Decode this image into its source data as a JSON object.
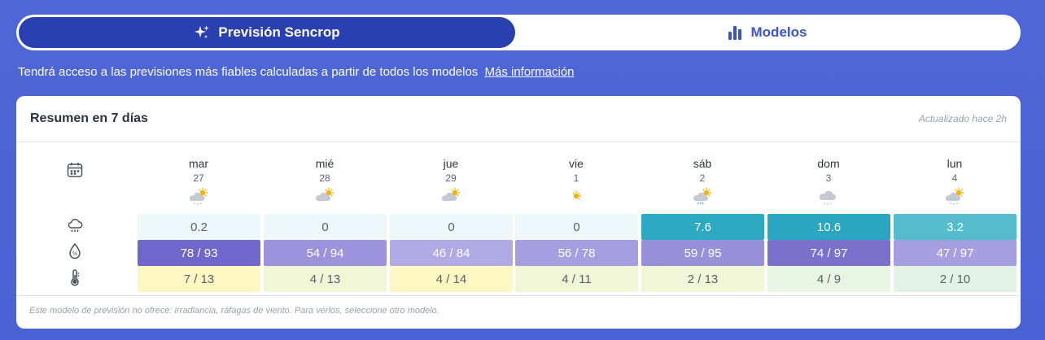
{
  "tabs": {
    "active_label": "Previsión Sencrop",
    "inactive_label": "Modelos"
  },
  "info": {
    "text": "Tendrá acceso a las previsiones más fiables calculadas a partir de todos los modelos",
    "link": "Más información"
  },
  "card": {
    "title": "Resumen en 7 días",
    "updated": "Actualizado hace 2h",
    "footer": "Este modelo de previsión no ofrece: irradiancia, ráfagas de viento. Para verlos, seleccione otro modelo."
  },
  "days": [
    {
      "name": "mar",
      "num": "27",
      "weather": "cloudy-sun-snow",
      "rain": "0.2",
      "hum": "78 / 93",
      "temp": "7 / 13",
      "rain_color": "#eef8fb",
      "hum_color": "#6f67c9",
      "temp_color": "#fdf8c2"
    },
    {
      "name": "mié",
      "num": "28",
      "weather": "cloudy-sun",
      "rain": "0",
      "hum": "54 / 94",
      "temp": "4 / 13",
      "rain_color": "#eef8fb",
      "hum_color": "#9c93dc",
      "temp_color": "#f1f7d6"
    },
    {
      "name": "jue",
      "num": "29",
      "weather": "cloudy-sun",
      "rain": "0",
      "hum": "46 / 84",
      "temp": "4 / 14",
      "rain_color": "#eef8fb",
      "hum_color": "#b0a9e4",
      "temp_color": "#fdf8c2"
    },
    {
      "name": "vie",
      "num": "1",
      "weather": "sun",
      "rain": "0",
      "hum": "56 / 78",
      "temp": "4 / 11",
      "rain_color": "#eef8fb",
      "hum_color": "#a59ee0",
      "temp_color": "#f1f7d6"
    },
    {
      "name": "sáb",
      "num": "2",
      "weather": "cloudy-sun-rain",
      "rain": "7.6",
      "hum": "59 / 95",
      "temp": "2 / 13",
      "rain_color": "#2da9c2",
      "hum_color": "#9891da",
      "temp_color": "#f1f7d6"
    },
    {
      "name": "dom",
      "num": "3",
      "weather": "cloud-snow",
      "rain": "10.6",
      "hum": "74 / 97",
      "temp": "4 / 9",
      "rain_color": "#2aa6c0",
      "hum_color": "#7b71cd",
      "temp_color": "#e8f5e2"
    },
    {
      "name": "lun",
      "num": "4",
      "weather": "cloudy-sun-snow",
      "rain": "3.2",
      "hum": "47 / 97",
      "temp": "2 / 10",
      "rain_color": "#55bccd",
      "hum_color": "#a79fe0",
      "temp_color": "#e3f3e8"
    }
  ],
  "row_icons": [
    "calendar-icon",
    "rain-cloud-icon",
    "humidity-drop-icon",
    "thermometer-icon"
  ]
}
